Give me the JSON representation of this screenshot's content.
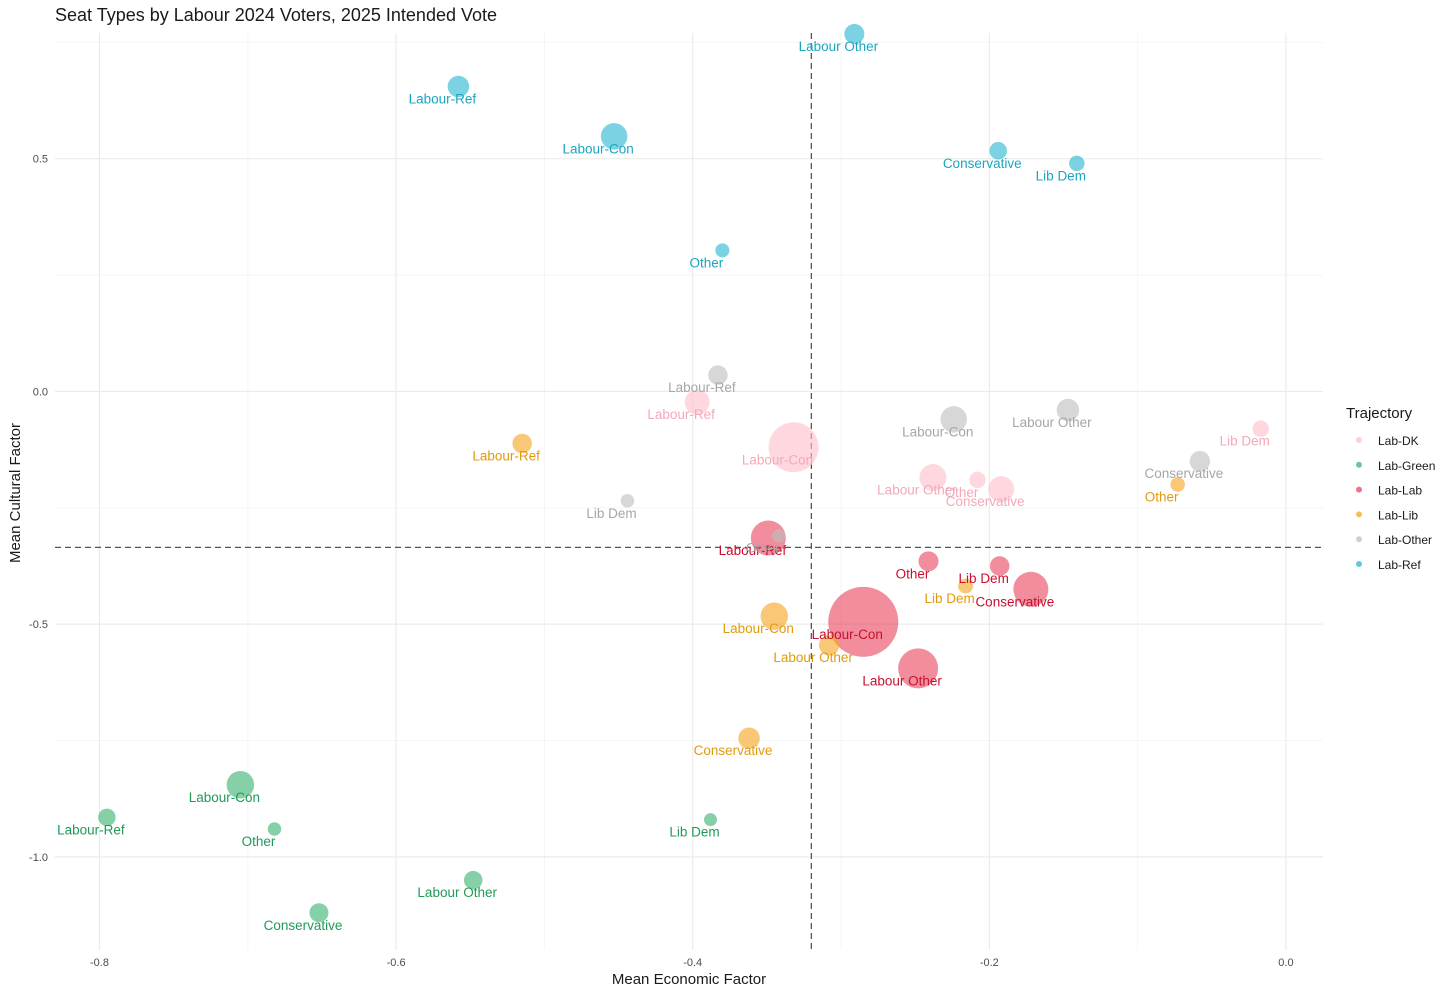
{
  "chart_data": {
    "type": "scatter",
    "title": "Seat Types by Labour 2024 Voters, 2025 Intended Vote",
    "xlabel": "Mean Economic Factor",
    "ylabel": "Mean Cultural Factor",
    "xlim": [
      -0.83,
      0.025
    ],
    "ylim": [
      -1.2,
      0.77
    ],
    "x_ticks": [
      -0.8,
      -0.6,
      -0.4,
      -0.2,
      0.0
    ],
    "x_tick_labels": [
      "-0.8",
      "-0.6",
      "-0.4",
      "-0.2",
      "0.0"
    ],
    "y_ticks": [
      -1.0,
      -0.5,
      0.0,
      0.5
    ],
    "y_tick_labels": [
      "-1.0",
      "-0.5",
      "0.0",
      "0.5"
    ],
    "grid": true,
    "reference_lines": {
      "x": -0.32,
      "y": -0.335,
      "style": "dashed"
    },
    "legend": {
      "title": "Trajectory",
      "position": "right"
    },
    "series": [
      {
        "name": "Lab-DK",
        "color": "#ffc0cb",
        "points": [
          {
            "label": "Labour-Ref",
            "x": -0.397,
            "y": -0.023,
            "size": 3.0
          },
          {
            "label": "Labour-Con",
            "x": -0.332,
            "y": -0.12,
            "size": 8.0
          },
          {
            "label": "Labour Other",
            "x": -0.238,
            "y": -0.185,
            "size": 3.4
          },
          {
            "label": "Other",
            "x": -0.208,
            "y": -0.19,
            "size": 1.3
          },
          {
            "label": "Conservative",
            "x": -0.192,
            "y": -0.21,
            "size": 3.2
          },
          {
            "label": "Lib Dem",
            "x": -0.017,
            "y": -0.08,
            "size": 1.3
          }
        ]
      },
      {
        "name": "Lab-Green",
        "color": "#3cb371",
        "points": [
          {
            "label": "Labour-Con",
            "x": -0.705,
            "y": -0.845,
            "size": 3.5
          },
          {
            "label": "Labour-Ref",
            "x": -0.795,
            "y": -0.915,
            "size": 1.5
          },
          {
            "label": "Other",
            "x": -0.682,
            "y": -0.94,
            "size": 0.7
          },
          {
            "label": "Conservative",
            "x": -0.652,
            "y": -1.12,
            "size": 1.8
          },
          {
            "label": "Labour Other",
            "x": -0.548,
            "y": -1.05,
            "size": 1.7
          },
          {
            "label": "Lib Dem",
            "x": -0.388,
            "y": -0.92,
            "size": 0.6
          }
        ]
      },
      {
        "name": "Lab-Lab",
        "color": "#e8475f",
        "points": [
          {
            "label": "Labour-Con",
            "x": -0.285,
            "y": -0.495,
            "size": 12.0
          },
          {
            "label": "Labour Other",
            "x": -0.248,
            "y": -0.595,
            "size": 6.0
          },
          {
            "label": "Conservative",
            "x": -0.172,
            "y": -0.425,
            "size": 5.0
          },
          {
            "label": "Labour-Ref",
            "x": -0.349,
            "y": -0.315,
            "size": 5.0
          },
          {
            "label": "Other",
            "x": -0.241,
            "y": -0.365,
            "size": 2.0
          },
          {
            "label": "Lib Dem",
            "x": -0.193,
            "y": -0.375,
            "size": 1.9
          }
        ]
      },
      {
        "name": "Lab-Lib",
        "color": "#f5a623",
        "points": [
          {
            "label": "Labour-Ref",
            "x": -0.515,
            "y": -0.112,
            "size": 1.9
          },
          {
            "label": "Labour-Con",
            "x": -0.345,
            "y": -0.483,
            "size": 3.5
          },
          {
            "label": "Labour Other",
            "x": -0.308,
            "y": -0.545,
            "size": 2.1
          },
          {
            "label": "Conservative",
            "x": -0.362,
            "y": -0.745,
            "size": 2.3
          },
          {
            "label": "Lib Dem",
            "x": -0.216,
            "y": -0.418,
            "size": 1.0
          },
          {
            "label": "Other",
            "x": -0.073,
            "y": -0.2,
            "size": 0.9
          }
        ]
      },
      {
        "name": "Lab-Other",
        "color": "#bfbfbf",
        "points": [
          {
            "label": "Labour-Ref",
            "x": -0.383,
            "y": 0.035,
            "size": 1.9
          },
          {
            "label": "Labour-Con",
            "x": -0.224,
            "y": -0.06,
            "size": 3.3
          },
          {
            "label": "Labour Other",
            "x": -0.147,
            "y": -0.04,
            "size": 2.5
          },
          {
            "label": "Conservative",
            "x": -0.058,
            "y": -0.15,
            "size": 2.1
          },
          {
            "label": "Lib Dem",
            "x": -0.444,
            "y": -0.235,
            "size": 0.7
          },
          {
            "label": "Other",
            "x": -0.342,
            "y": -0.31,
            "size": 0.7
          }
        ]
      },
      {
        "name": "Lab-Ref",
        "color": "#29b6d1",
        "points": [
          {
            "label": "Labour-Ref",
            "x": -0.558,
            "y": 0.655,
            "size": 2.3
          },
          {
            "label": "Labour-Con",
            "x": -0.453,
            "y": 0.548,
            "size": 3.3
          },
          {
            "label": "Other",
            "x": -0.38,
            "y": 0.303,
            "size": 0.8
          },
          {
            "label": "Labour Other",
            "x": -0.291,
            "y": 0.768,
            "size": 2.0
          },
          {
            "label": "Conservative",
            "x": -0.194,
            "y": 0.517,
            "size": 1.5
          },
          {
            "label": "Lib Dem",
            "x": -0.141,
            "y": 0.49,
            "size": 1.1
          }
        ]
      }
    ]
  }
}
